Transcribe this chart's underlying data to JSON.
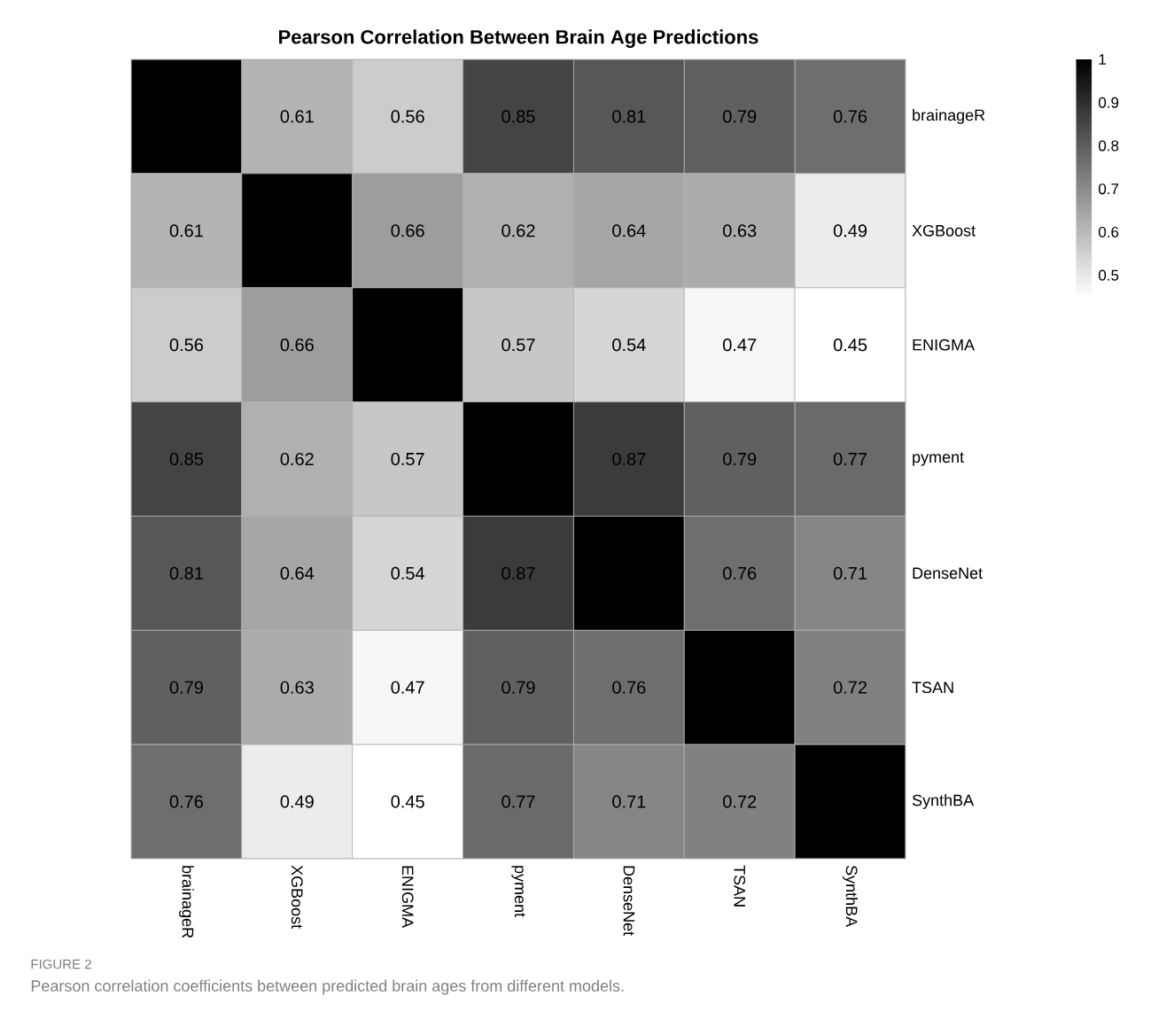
{
  "chart_data": {
    "type": "heatmap",
    "title": "Pearson Correlation Between Brain Age Predictions",
    "categories": [
      "brainageR",
      "XGBoost",
      "ENIGMA",
      "pyment",
      "DenseNet",
      "TSAN",
      "SynthBA"
    ],
    "y_categories": [
      "brainageR",
      "XGBoost",
      "ENIGMA",
      "pyment",
      "DenseNet",
      "TSAN",
      "SynthBA"
    ],
    "cells": [
      [
        1,
        0.61,
        0.56,
        0.85,
        0.81,
        0.79,
        0.76
      ],
      [
        0.61,
        1,
        0.66,
        0.62,
        0.64,
        0.63,
        0.49
      ],
      [
        0.56,
        0.66,
        1,
        0.57,
        0.54,
        0.47,
        0.45
      ],
      [
        0.85,
        0.62,
        0.57,
        1,
        0.87,
        0.79,
        0.77
      ],
      [
        0.81,
        0.64,
        0.54,
        0.87,
        1,
        0.76,
        0.71
      ],
      [
        0.79,
        0.63,
        0.47,
        0.79,
        0.76,
        1,
        0.72
      ],
      [
        0.76,
        0.49,
        0.45,
        0.77,
        0.71,
        0.72,
        1
      ]
    ],
    "cell_labels": [
      [
        null,
        "0.61",
        "0.56",
        "0.85",
        "0.81",
        "0.79",
        "0.76"
      ],
      [
        "0.61",
        null,
        "0.66",
        "0.62",
        "0.64",
        "0.63",
        "0.49"
      ],
      [
        "0.56",
        "0.66",
        null,
        "0.57",
        "0.54",
        "0.47",
        "0.45"
      ],
      [
        "0.85",
        "0.62",
        "0.57",
        null,
        "0.87",
        "0.79",
        "0.77"
      ],
      [
        "0.81",
        "0.64",
        "0.54",
        "0.87",
        null,
        "0.76",
        "0.71"
      ],
      [
        "0.79",
        "0.63",
        "0.47",
        "0.79",
        "0.76",
        null,
        "0.72"
      ],
      [
        "0.76",
        "0.49",
        "0.45",
        "0.77",
        "0.71",
        "0.72",
        null
      ]
    ],
    "clim": [
      0.45,
      1
    ],
    "cticks": [
      0.5,
      0.6,
      0.7,
      0.8,
      0.9,
      1
    ],
    "annotations": [
      "FIGURE 2",
      "Pearson correlation coefficients between predicted brain ages from different models."
    ]
  }
}
